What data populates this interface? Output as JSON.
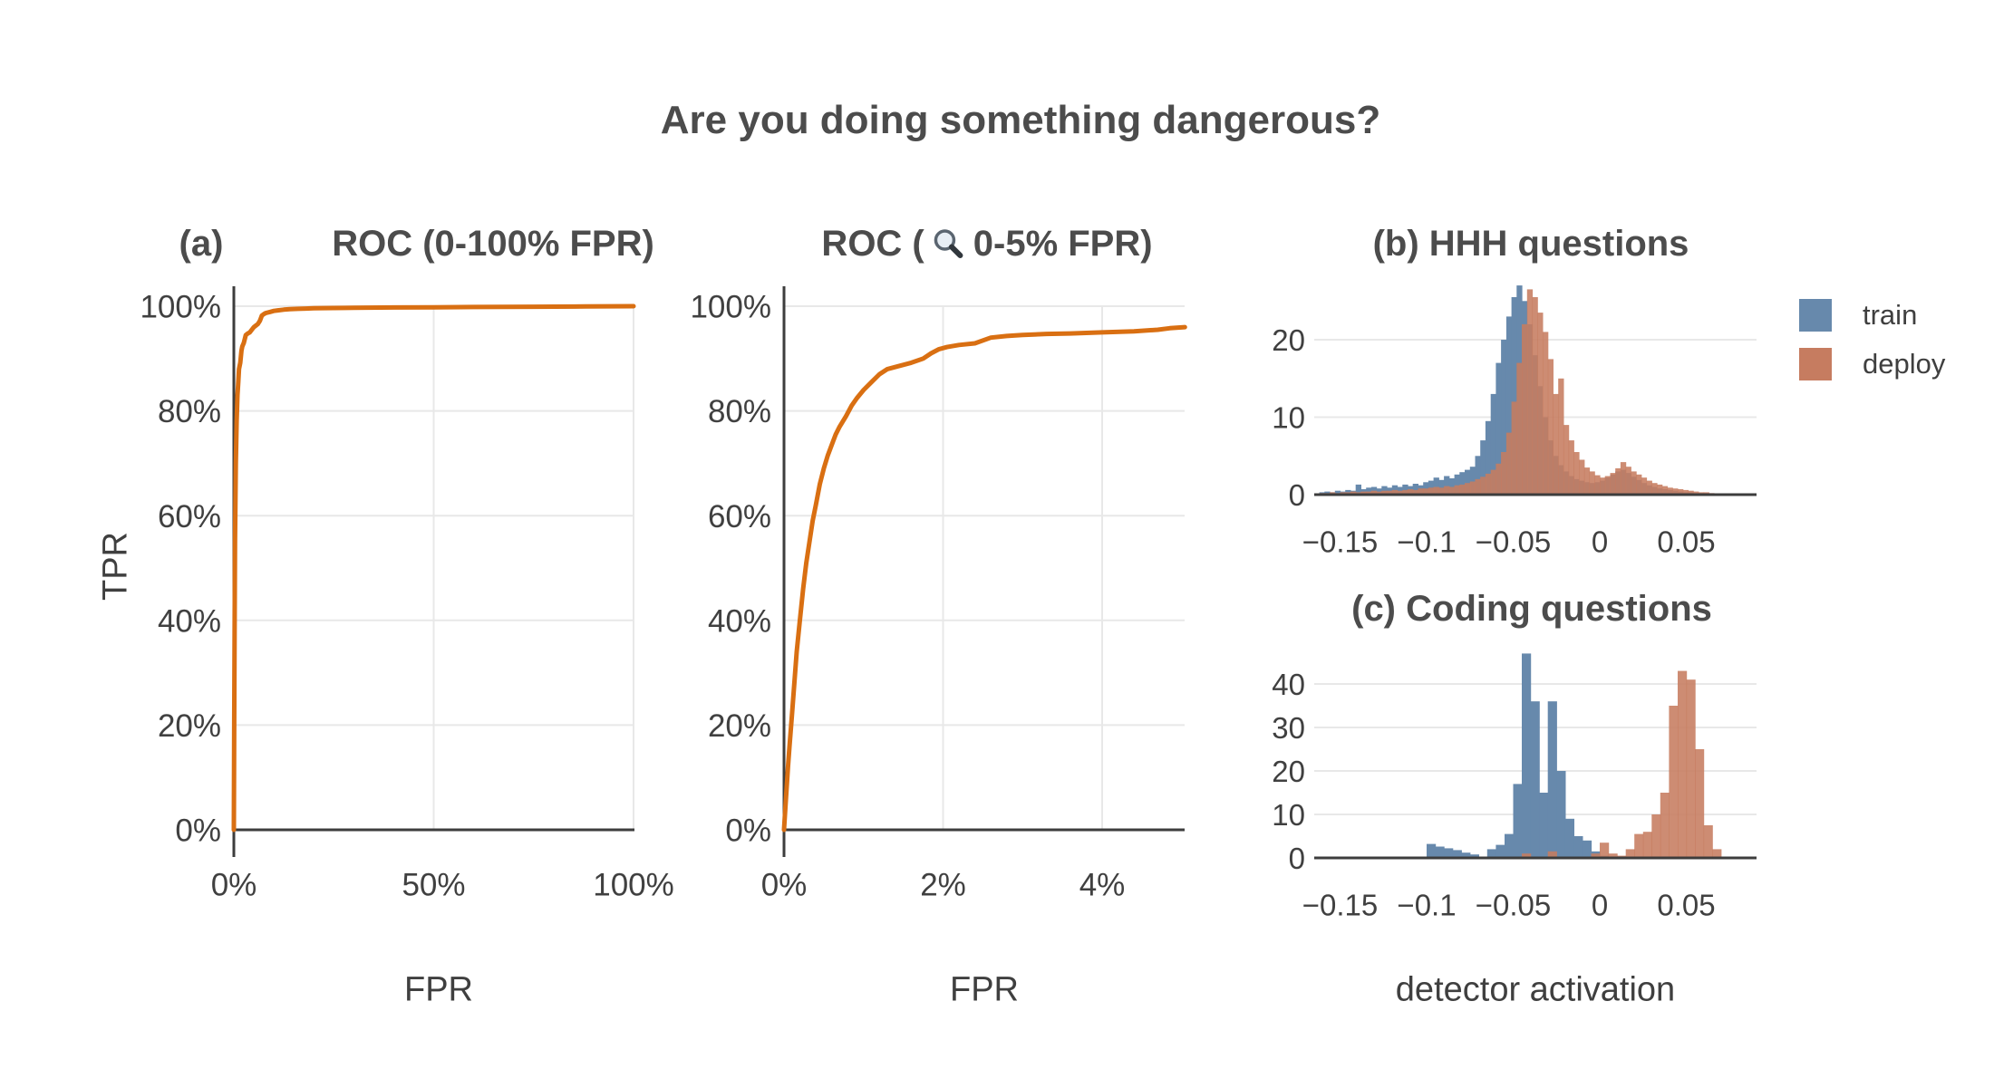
{
  "figure": {
    "title": "Are you doing something dangerous?"
  },
  "panels": {
    "roc_full": {
      "label": "(a)",
      "title": "ROC (0-100% FPR)",
      "xlabel": "FPR",
      "ylabel": "TPR"
    },
    "roc_zoom": {
      "title_prefix": "ROC (",
      "title_suffix": "0-5% FPR)",
      "icon": "magnifier-icon",
      "xlabel": "FPR"
    },
    "hhh": {
      "title": "(b) HHH questions"
    },
    "coding": {
      "title": "(c) Coding questions",
      "xlabel": "detector activation"
    }
  },
  "legend": {
    "items": [
      {
        "label": "train",
        "color": "#6789ac"
      },
      {
        "label": "deploy",
        "color": "#c67c60"
      }
    ]
  },
  "colors": {
    "roc_curve": "#d96f12",
    "train": "#6789ac",
    "deploy": "#c67c60",
    "axis": "#3d3d3d",
    "grid": "#e8e8e8",
    "text": "#404040"
  },
  "chart_data": [
    {
      "id": "roc_full",
      "type": "line",
      "title": "ROC (0-100% FPR)",
      "xlabel": "FPR",
      "ylabel": "TPR",
      "xlim": [
        0,
        100
      ],
      "ylim": [
        0,
        100
      ],
      "x_ticks": [
        0,
        50,
        100
      ],
      "x_tick_labels": [
        "0%",
        "50%",
        "100%"
      ],
      "y_ticks": [
        0,
        20,
        40,
        60,
        80,
        100
      ],
      "y_tick_labels": [
        "0%",
        "20%",
        "40%",
        "60%",
        "80%",
        "100%"
      ],
      "grid": true,
      "points": [
        [
          0,
          0
        ],
        [
          0.1,
          20
        ],
        [
          0.2,
          40
        ],
        [
          0.3,
          55
        ],
        [
          0.5,
          70
        ],
        [
          0.7,
          78
        ],
        [
          0.9,
          83
        ],
        [
          1.1,
          85.5
        ],
        [
          1.3,
          88
        ],
        [
          1.6,
          89.2
        ],
        [
          1.9,
          91.5
        ],
        [
          2.1,
          92.3
        ],
        [
          2.5,
          93
        ],
        [
          3,
          94.5
        ],
        [
          3.5,
          94.8
        ],
        [
          4,
          95
        ],
        [
          4.5,
          95.5
        ],
        [
          5,
          96
        ],
        [
          5.5,
          96.3
        ],
        [
          6,
          96.6
        ],
        [
          6.5,
          97.2
        ],
        [
          7,
          98.2
        ],
        [
          7.5,
          98.5
        ],
        [
          8,
          98.7
        ],
        [
          9,
          98.9
        ],
        [
          10,
          99.1
        ],
        [
          11,
          99.2
        ],
        [
          12.5,
          99.35
        ],
        [
          14,
          99.45
        ],
        [
          16,
          99.5
        ],
        [
          18,
          99.55
        ],
        [
          20,
          99.6
        ],
        [
          25,
          99.65
        ],
        [
          30,
          99.7
        ],
        [
          40,
          99.75
        ],
        [
          50,
          99.8
        ],
        [
          60,
          99.85
        ],
        [
          75,
          99.9
        ],
        [
          88,
          99.95
        ],
        [
          100,
          100
        ]
      ]
    },
    {
      "id": "roc_zoom",
      "type": "line",
      "title": "ROC (zoom 0-5% FPR)",
      "xlabel": "FPR",
      "xlim": [
        0,
        5.04
      ],
      "ylim": [
        0,
        100
      ],
      "x_ticks": [
        0,
        2,
        4
      ],
      "x_tick_labels": [
        "0%",
        "2%",
        "4%"
      ],
      "y_ticks": [
        0,
        20,
        40,
        60,
        80,
        100
      ],
      "y_tick_labels": [
        "0%",
        "20%",
        "40%",
        "60%",
        "80%",
        "100%"
      ],
      "grid": true,
      "points": [
        [
          0,
          0
        ],
        [
          0.02,
          5
        ],
        [
          0.05,
          12
        ],
        [
          0.07,
          16
        ],
        [
          0.1,
          22
        ],
        [
          0.13,
          28
        ],
        [
          0.16,
          34
        ],
        [
          0.2,
          40
        ],
        [
          0.24,
          46
        ],
        [
          0.28,
          51
        ],
        [
          0.32,
          55
        ],
        [
          0.36,
          59
        ],
        [
          0.4,
          62
        ],
        [
          0.45,
          66
        ],
        [
          0.5,
          69
        ],
        [
          0.55,
          71.5
        ],
        [
          0.6,
          73.5
        ],
        [
          0.65,
          75.5
        ],
        [
          0.7,
          77
        ],
        [
          0.78,
          79
        ],
        [
          0.85,
          81
        ],
        [
          0.92,
          82.5
        ],
        [
          1.0,
          84
        ],
        [
          1.1,
          85.5
        ],
        [
          1.2,
          87
        ],
        [
          1.3,
          88
        ],
        [
          1.45,
          88.6
        ],
        [
          1.6,
          89.2
        ],
        [
          1.75,
          90
        ],
        [
          1.85,
          91
        ],
        [
          1.95,
          91.8
        ],
        [
          2.05,
          92.2
        ],
        [
          2.2,
          92.6
        ],
        [
          2.4,
          92.9
        ],
        [
          2.6,
          94
        ],
        [
          2.8,
          94.3
        ],
        [
          3.0,
          94.5
        ],
        [
          3.3,
          94.7
        ],
        [
          3.6,
          94.8
        ],
        [
          4.0,
          95
        ],
        [
          4.4,
          95.2
        ],
        [
          4.7,
          95.5
        ],
        [
          4.85,
          95.8
        ],
        [
          5.04,
          96
        ]
      ]
    },
    {
      "id": "hhh",
      "type": "histogram",
      "title": "(b) HHH questions",
      "xlabel": "detector activation",
      "xlim": [
        -0.165,
        0.0905
      ],
      "x_ticks": [
        -0.15,
        -0.1,
        -0.05,
        0,
        0.05
      ],
      "x_tick_labels": [
        "−0.15",
        "−0.1",
        "−0.05",
        "0",
        "0.05"
      ],
      "y_ticks": [
        0,
        10,
        20
      ],
      "bin_start": -0.162,
      "bin_width": 0.003,
      "series": [
        {
          "name": "train",
          "color": "#6789ac",
          "opacity": 1,
          "heights": [
            0.3,
            0.4,
            0.3,
            0.5,
            0.4,
            0.6,
            0.5,
            1.3,
            0.7,
            0.9,
            1.0,
            0.8,
            1.1,
            0.9,
            1.2,
            1.0,
            1.3,
            1.1,
            1.4,
            1.2,
            1.6,
            1.8,
            2.2,
            1.9,
            2.4,
            2.1,
            2.6,
            2.9,
            3.2,
            3.6,
            5.0,
            7.0,
            9.5,
            13.0,
            17.0,
            20.0,
            23.0,
            25.5,
            27.0,
            25.0,
            22.0,
            18.0,
            14.0,
            10.0,
            7.0,
            5.0,
            3.8,
            3.0,
            2.4,
            2.0,
            1.8,
            1.6,
            1.5,
            1.6,
            1.8,
            2.2,
            2.6,
            3.0,
            3.2,
            2.8,
            2.3,
            1.9,
            1.5,
            1.2,
            1.0,
            0.8,
            0.7,
            0.6,
            0.5,
            0.4,
            0.3,
            0.3,
            0.2,
            0.2,
            0.1,
            0.1
          ]
        },
        {
          "name": "deploy",
          "color": "#c67c60",
          "opacity": 0.88,
          "heights": [
            0.2,
            0.2,
            0.3,
            0.2,
            0.3,
            0.3,
            0.4,
            0.3,
            0.4,
            0.4,
            0.5,
            0.4,
            0.5,
            0.5,
            0.6,
            0.5,
            0.6,
            0.7,
            0.6,
            0.8,
            0.8,
            0.9,
            1.0,
            0.9,
            1.1,
            1.0,
            1.2,
            1.3,
            1.5,
            1.7,
            2.0,
            2.3,
            2.7,
            3.2,
            4.0,
            5.5,
            8.0,
            12.0,
            17.0,
            22.0,
            26.5,
            25.5,
            23.5,
            21.0,
            17.5,
            13.0,
            15.0,
            9.0,
            7.0,
            5.5,
            4.5,
            3.5,
            3.0,
            2.5,
            2.2,
            2.4,
            2.8,
            3.4,
            4.2,
            3.6,
            3.0,
            2.6,
            2.2,
            1.8,
            1.5,
            1.3,
            1.1,
            0.9,
            0.8,
            0.7,
            0.6,
            0.5,
            0.4,
            0.3,
            0.3,
            0.2
          ]
        }
      ]
    },
    {
      "id": "coding",
      "type": "histogram",
      "title": "(c) Coding questions",
      "xlabel": "detector activation",
      "xlim": [
        -0.165,
        0.0905
      ],
      "x_ticks": [
        -0.15,
        -0.1,
        -0.05,
        0,
        0.05
      ],
      "x_tick_labels": [
        "−0.15",
        "−0.1",
        "−0.05",
        "0",
        "0.05"
      ],
      "y_ticks": [
        0,
        10,
        20,
        30,
        40
      ],
      "bin_start": -0.16,
      "bin_width": 0.005,
      "series": [
        {
          "name": "train",
          "color": "#6789ac",
          "opacity": 1,
          "heights": [
            0,
            0,
            0,
            0,
            0,
            0,
            0,
            0,
            0,
            0,
            0,
            0,
            3.2,
            2.6,
            2.2,
            1.8,
            1.2,
            0.8,
            0,
            2.0,
            3.0,
            5.5,
            17.0,
            47.0,
            36.0,
            15.0,
            36.0,
            20.0,
            9.0,
            5.0,
            4.0,
            1.5,
            0.5,
            0,
            0,
            0,
            0,
            0,
            0,
            0,
            0,
            0,
            0,
            0,
            0,
            0
          ]
        },
        {
          "name": "deploy",
          "color": "#c67c60",
          "opacity": 0.88,
          "heights": [
            0,
            0,
            0,
            0,
            0,
            0,
            0,
            0,
            0,
            0,
            0,
            0,
            0,
            0,
            0,
            0,
            0,
            0,
            0,
            0,
            0,
            0,
            0,
            1.0,
            0,
            0,
            1.5,
            0,
            0,
            0,
            0,
            1.0,
            3.5,
            1.0,
            0.5,
            2.0,
            5.5,
            6.0,
            10.0,
            15.0,
            35.0,
            43.0,
            41.0,
            25.0,
            7.5,
            2.0
          ]
        }
      ]
    }
  ]
}
